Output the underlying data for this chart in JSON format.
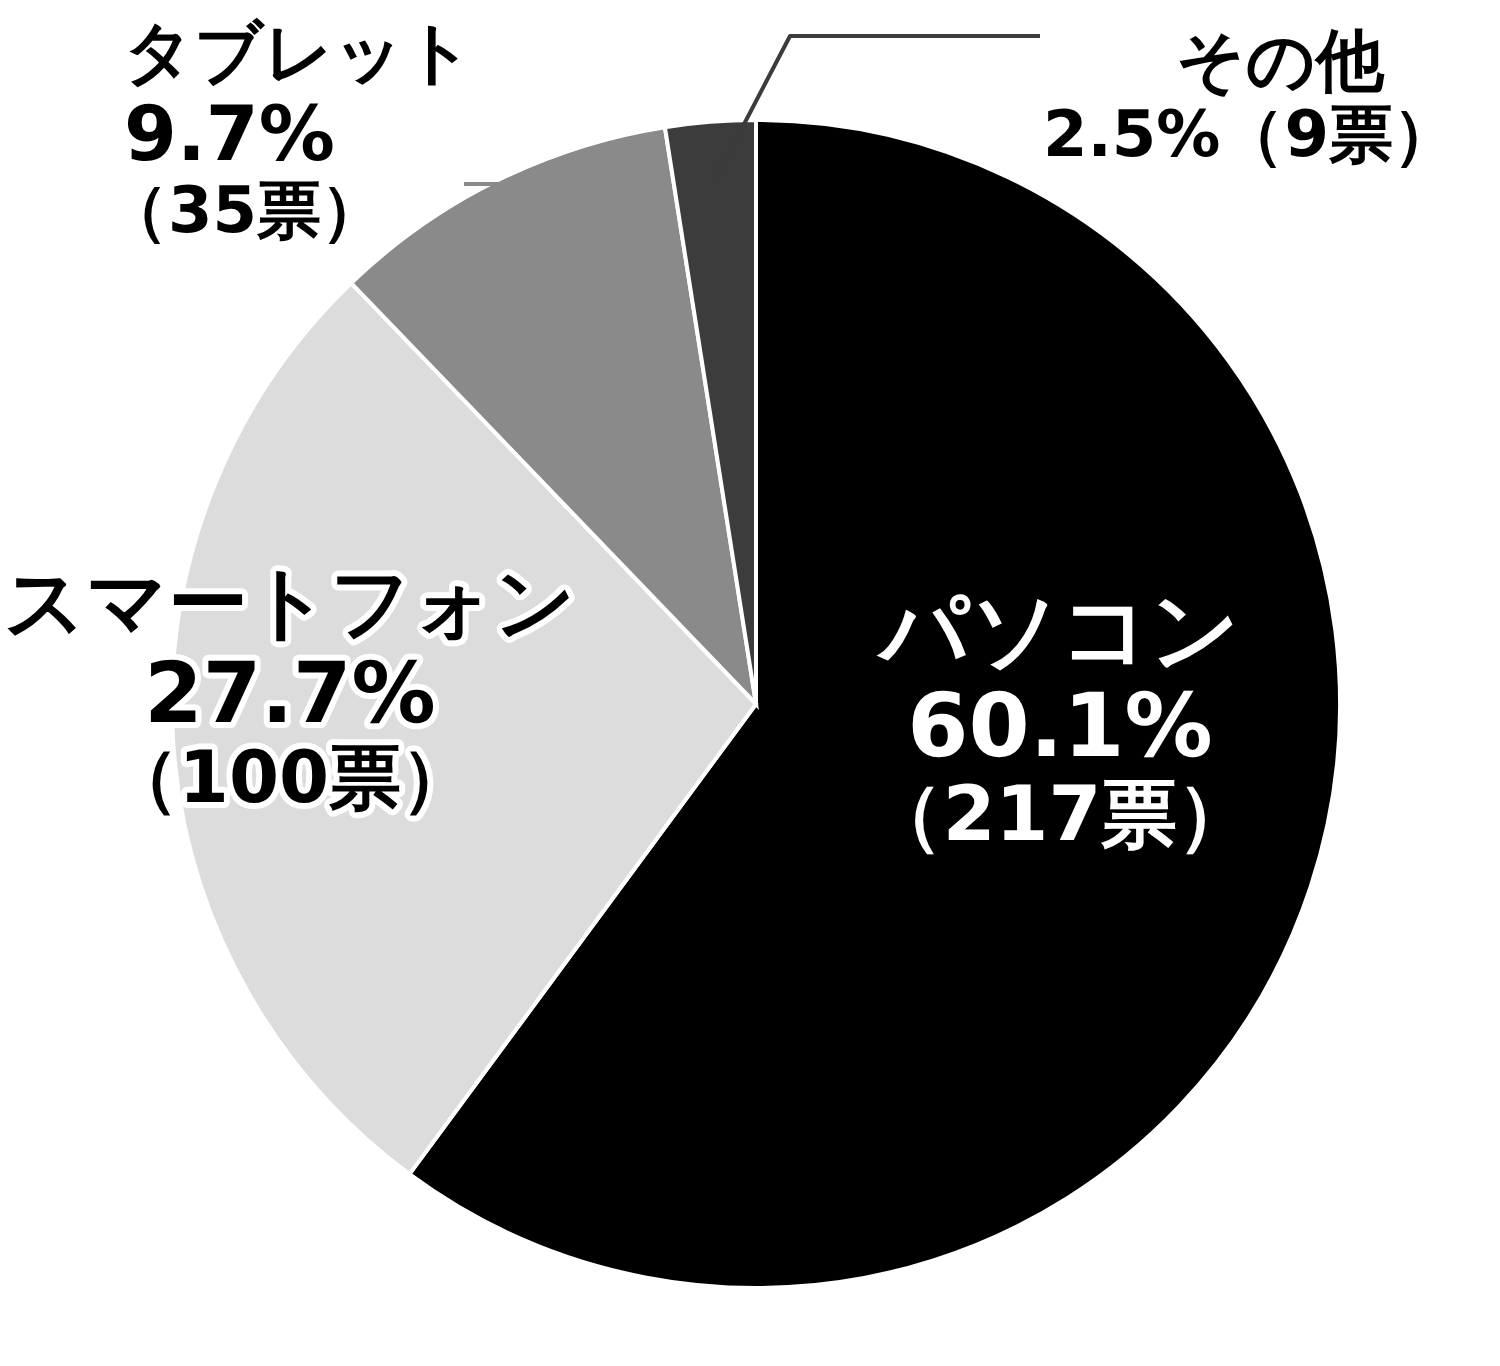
{
  "chart_data": {
    "type": "pie",
    "categories": [
      "パソコン",
      "スマートフォン",
      "タブレット",
      "その他"
    ],
    "values": [
      217,
      100,
      35,
      9
    ],
    "colors": [
      "#000000",
      "#dcdcdc",
      "#8a8a8a",
      "#3c3c3c"
    ],
    "value_labels": [
      "60.1%（217票）",
      "27.7%（100票）",
      "9.7%（35票）",
      "2.5%（9票）"
    ]
  }
}
